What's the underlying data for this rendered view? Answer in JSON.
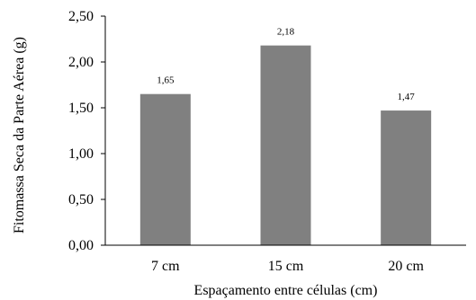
{
  "chart_data": {
    "type": "bar",
    "title": "",
    "xlabel": "Espaçamento entre células (cm)",
    "ylabel": "Fitomassa Seca da Parte Aérea (g)",
    "categories": [
      "7 cm",
      "15 cm",
      "20 cm"
    ],
    "values": [
      1.65,
      2.18,
      1.47
    ],
    "data_labels": [
      "1,65",
      "2,18",
      "1,47"
    ],
    "ylim": [
      0,
      2.5
    ],
    "yticks": [
      0,
      0.5,
      1.0,
      1.5,
      2.0,
      2.5
    ],
    "ytick_labels": [
      "0,00",
      "0,50",
      "1,00",
      "1,50",
      "2,00",
      "2,50"
    ],
    "bar_color": "#808080",
    "grid": false,
    "legend": "none"
  }
}
